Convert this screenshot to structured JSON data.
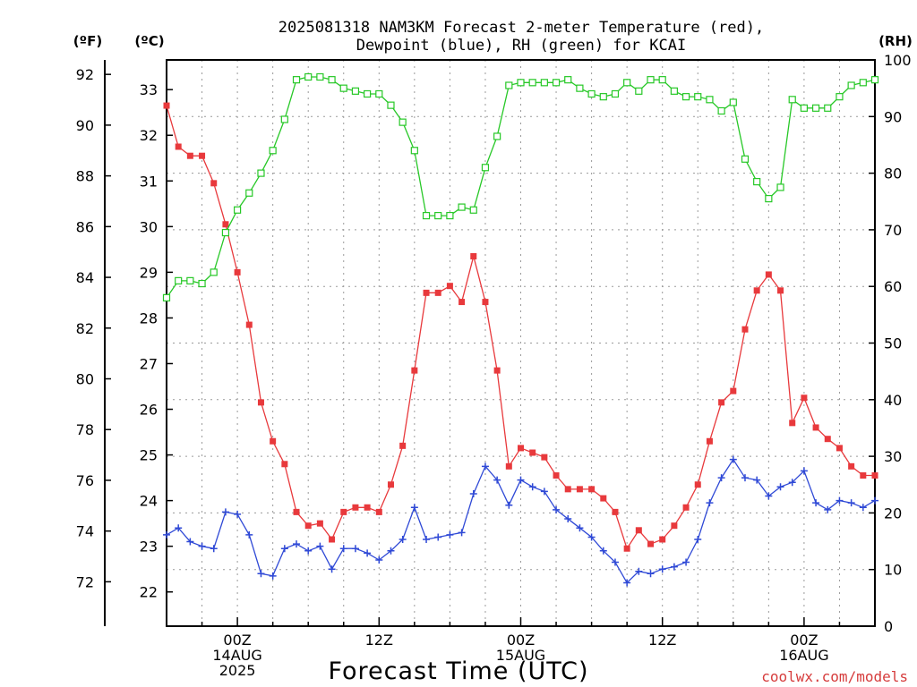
{
  "chart_data": {
    "type": "line",
    "title": [
      "2025081318 NAM3KM Forecast 2-meter Temperature (red),",
      "Dewpoint (blue), RH (green) for KCAI"
    ],
    "xlabel": "Forecast Time (UTC)",
    "credit": "coolwx.com/models",
    "axes": {
      "fahrenheit": {
        "label": "(ºF)",
        "ticks": [
          72,
          74,
          76,
          78,
          80,
          82,
          84,
          86,
          88,
          90,
          92
        ]
      },
      "celsius": {
        "label": "(ºC)",
        "range": [
          21.25,
          33.65
        ],
        "ticks": [
          22,
          23,
          24,
          25,
          26,
          27,
          28,
          29,
          30,
          31,
          32,
          33
        ]
      },
      "rh": {
        "label": "(RH)",
        "range": [
          0,
          100
        ],
        "ticks": [
          0,
          10,
          20,
          30,
          40,
          50,
          60,
          70,
          80,
          90,
          100
        ]
      }
    },
    "x_range_hours": [
      -6,
      54
    ],
    "x_ticks": [
      {
        "hour": 0,
        "lines": [
          "00Z",
          "14AUG",
          "2025"
        ]
      },
      {
        "hour": 12,
        "lines": [
          "12Z"
        ]
      },
      {
        "hour": 24,
        "lines": [
          "00Z",
          "15AUG"
        ]
      },
      {
        "hour": 36,
        "lines": [
          "12Z"
        ]
      },
      {
        "hour": 48,
        "lines": [
          "00Z",
          "16AUG"
        ]
      }
    ],
    "grid": true,
    "colors": {
      "temperature": "#e8393c",
      "dewpoint": "#2f49d6",
      "rh": "#27c827"
    },
    "series": [
      {
        "key": "temperature",
        "unit": "C",
        "marker": "filled-square",
        "values": [
          32.65,
          31.75,
          31.55,
          31.55,
          30.95,
          30.05,
          29.0,
          27.85,
          26.15,
          25.3,
          24.8,
          23.75,
          23.45,
          23.5,
          23.15,
          23.75,
          23.85,
          23.85,
          23.75,
          24.35,
          25.2,
          26.85,
          28.55,
          28.55,
          28.7,
          28.35,
          29.35,
          28.35,
          26.85,
          24.75,
          25.15,
          25.05,
          24.95,
          24.55,
          24.25,
          24.25,
          24.25,
          24.05,
          23.75,
          22.95,
          23.35,
          23.05,
          23.15,
          23.45,
          23.85,
          24.35,
          25.3,
          26.15,
          26.4,
          27.75,
          28.6,
          28.95,
          28.6,
          25.7,
          26.25,
          25.6,
          25.35,
          25.15,
          24.75,
          24.55,
          24.55
        ]
      },
      {
        "key": "dewpoint",
        "unit": "C",
        "marker": "plus",
        "values": [
          23.25,
          23.4,
          23.1,
          23.0,
          22.95,
          23.75,
          23.7,
          23.25,
          22.4,
          22.35,
          22.95,
          23.05,
          22.9,
          23.0,
          22.5,
          22.95,
          22.95,
          22.85,
          22.7,
          22.9,
          23.15,
          23.85,
          23.15,
          23.2,
          23.25,
          23.3,
          24.15,
          24.75,
          24.45,
          23.9,
          24.45,
          24.3,
          24.2,
          23.8,
          23.6,
          23.4,
          23.2,
          22.9,
          22.65,
          22.2,
          22.45,
          22.4,
          22.5,
          22.55,
          22.65,
          23.15,
          23.95,
          24.5,
          24.9,
          24.5,
          24.45,
          24.1,
          24.3,
          24.4,
          24.65,
          23.95,
          23.8,
          24.0,
          23.95,
          23.85,
          24.0
        ]
      },
      {
        "key": "rh",
        "unit": "%",
        "marker": "open-square",
        "values": [
          58,
          61,
          61,
          60.5,
          62.5,
          69.5,
          73.5,
          76.5,
          80,
          84,
          89.5,
          96.5,
          97,
          97,
          96.5,
          95,
          94.5,
          94,
          94,
          92,
          89,
          84,
          72.5,
          72.5,
          72.5,
          74,
          73.5,
          81,
          86.5,
          95.5,
          96,
          96,
          96,
          96,
          96.5,
          95,
          94,
          93.5,
          94,
          96,
          94.5,
          96.5,
          96.5,
          94.5,
          93.5,
          93.5,
          93,
          91,
          92.5,
          82.5,
          78.5,
          75.5,
          77.5,
          93,
          91.5,
          91.5,
          91.5,
          93.5,
          95.5,
          96,
          96.5
        ]
      }
    ]
  }
}
